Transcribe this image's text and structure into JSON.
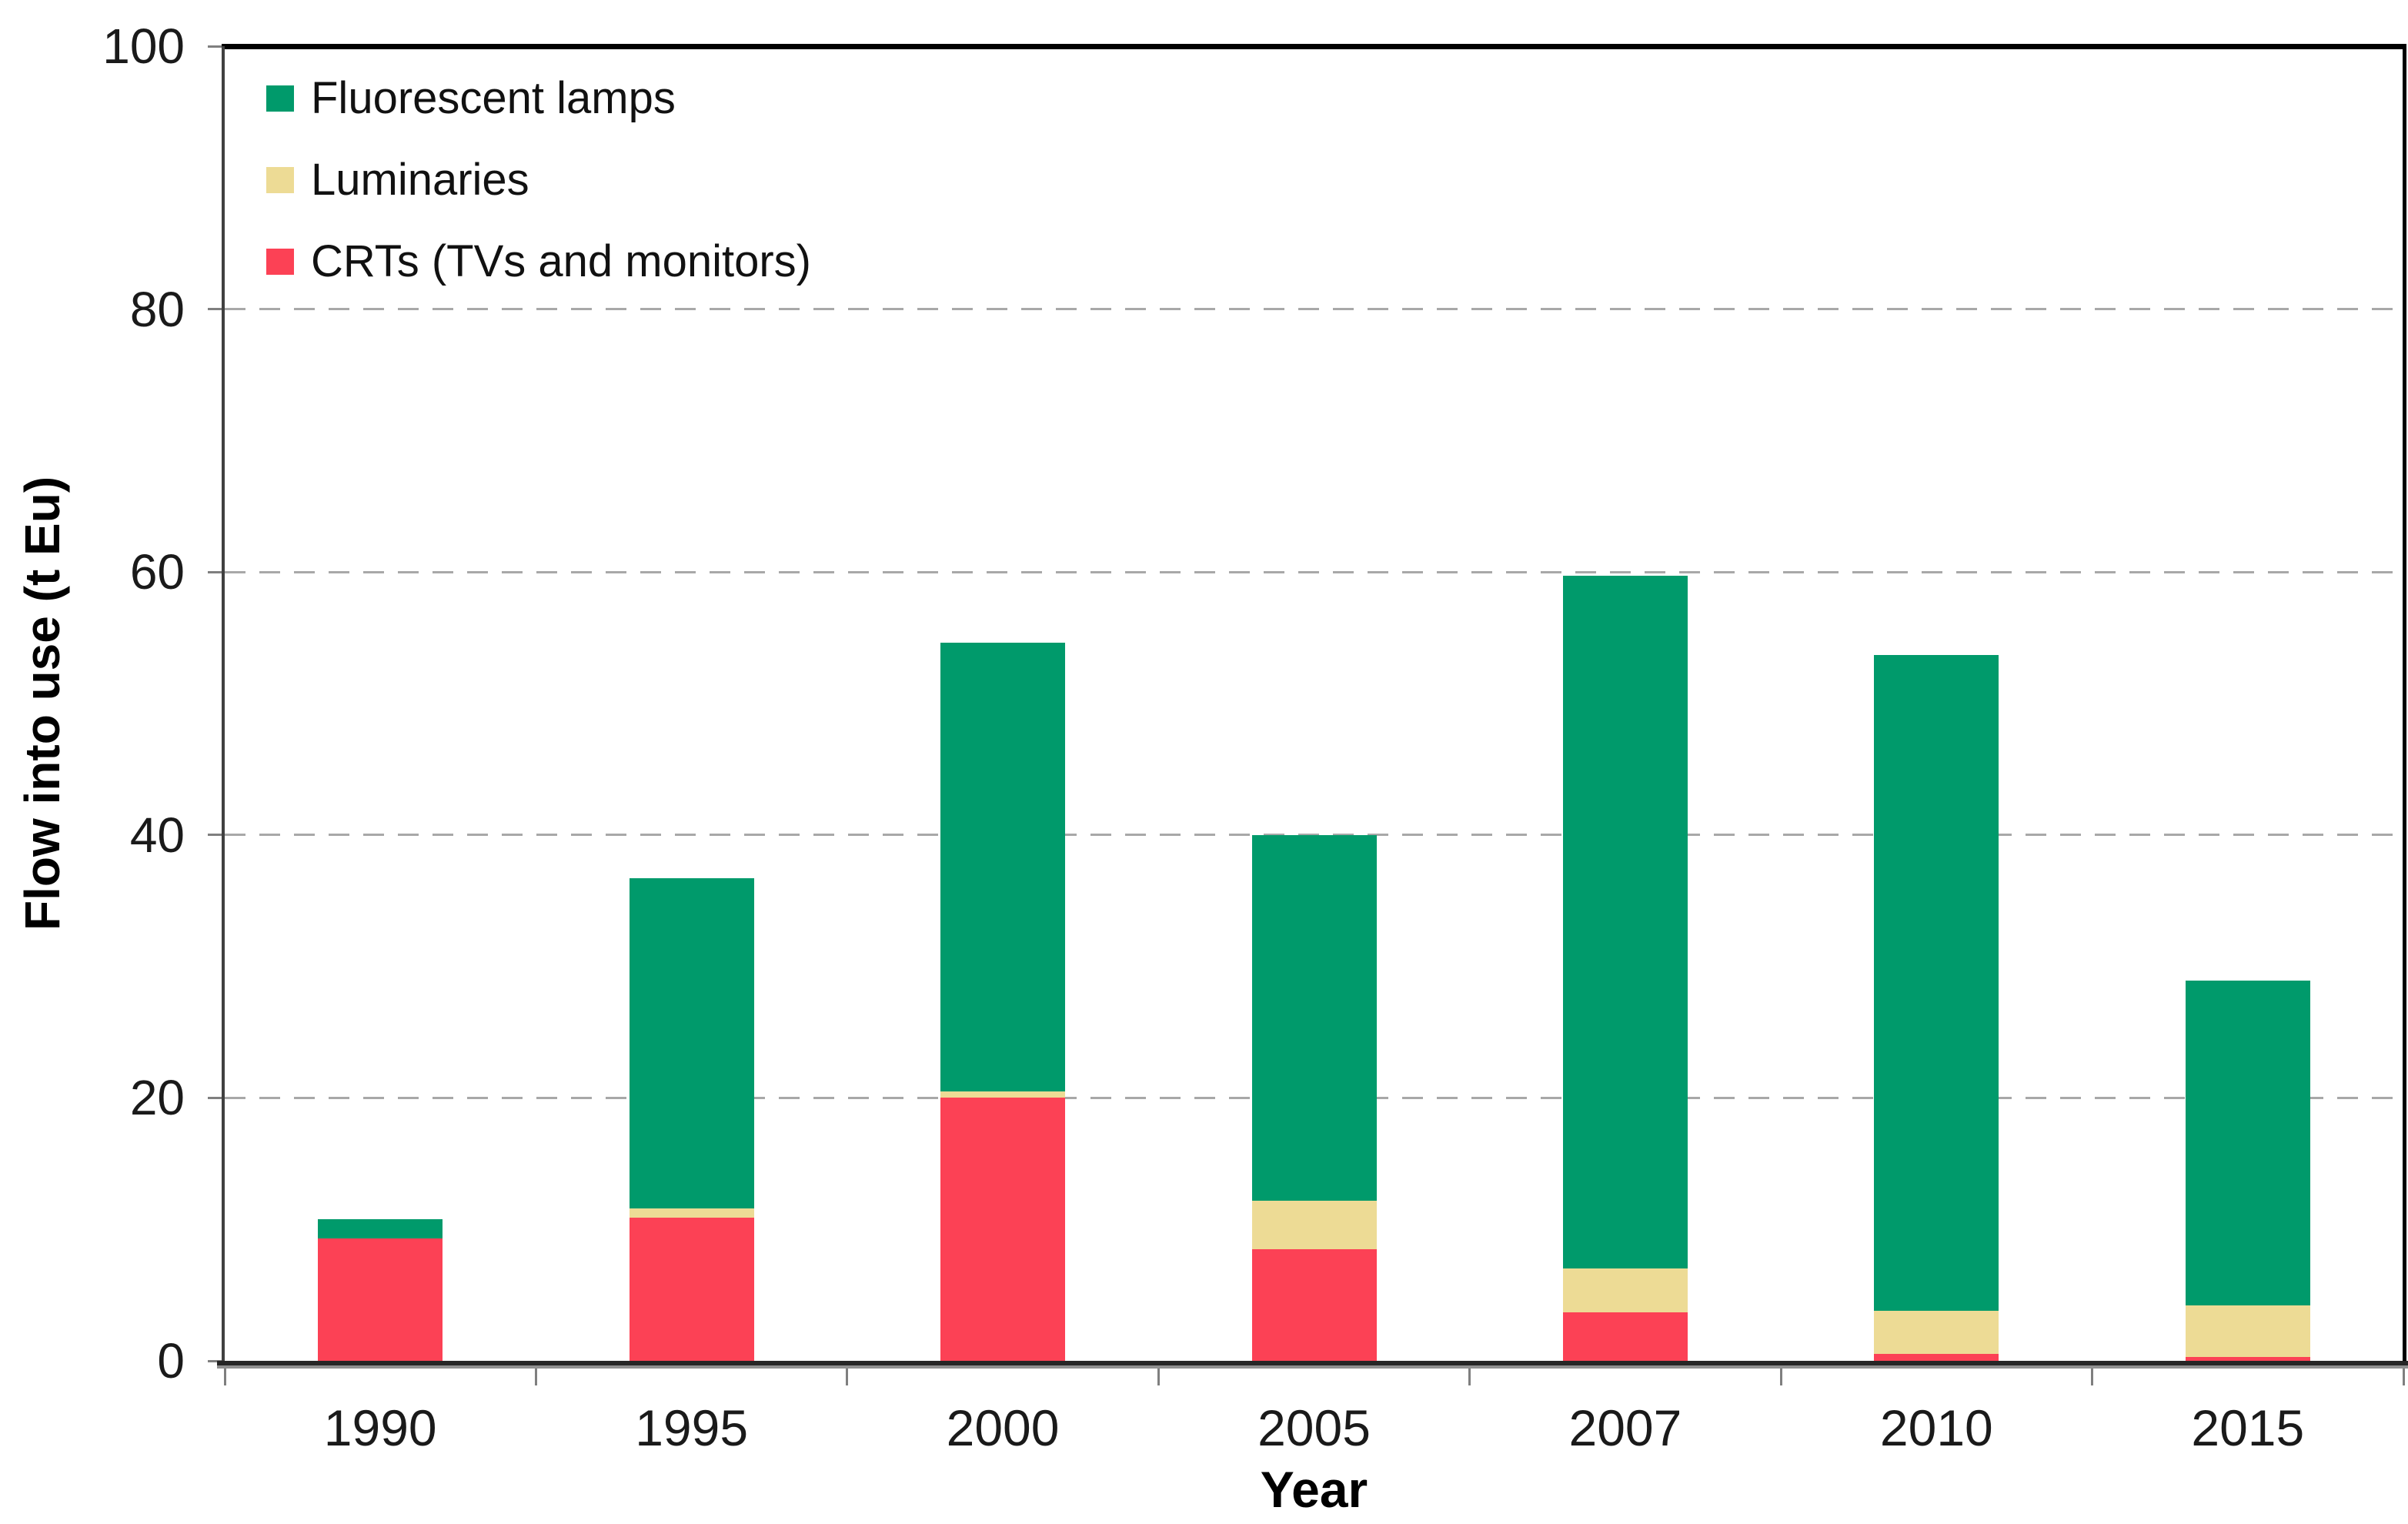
{
  "chart_data": {
    "type": "bar",
    "stacked": true,
    "title": "",
    "xlabel": "Year",
    "ylabel": "Flow into use (t Eu)",
    "categories": [
      "1990",
      "1995",
      "2000",
      "2005",
      "2007",
      "2010",
      "2015"
    ],
    "series": [
      {
        "name": "CRTs (TVs and monitors)",
        "color": "#FC4155",
        "values": [
          9.3,
          10.9,
          20.0,
          8.5,
          3.7,
          0.5,
          0.3
        ]
      },
      {
        "name": "Luminaries",
        "color": "#EDDB95",
        "values": [
          0.0,
          0.7,
          0.5,
          3.7,
          3.3,
          3.3,
          3.9
        ]
      },
      {
        "name": "Fluorescent lamps",
        "color": "#009A6B",
        "values": [
          1.5,
          25.1,
          34.1,
          27.8,
          52.7,
          49.9,
          24.7
        ]
      }
    ],
    "totals": [
      10.8,
      36.7,
      54.6,
      40.0,
      59.7,
      53.7,
      28.9
    ],
    "ylim": [
      0,
      100
    ],
    "yticks": [
      0,
      20,
      40,
      60,
      80,
      100
    ],
    "grid": "horizontal dashed at 20,40,60,80",
    "legend_position": "top-left inside plot",
    "legend_order": [
      "Fluorescent lamps",
      "Luminaries",
      "CRTs (TVs and monitors)"
    ]
  },
  "style_colors": {
    "grid": "#a8a8a8",
    "axis_left": "#404040",
    "axis_bottom": "#262626",
    "frame": "#000000",
    "tick": "#7f7f7f",
    "background": "#ffffff"
  }
}
